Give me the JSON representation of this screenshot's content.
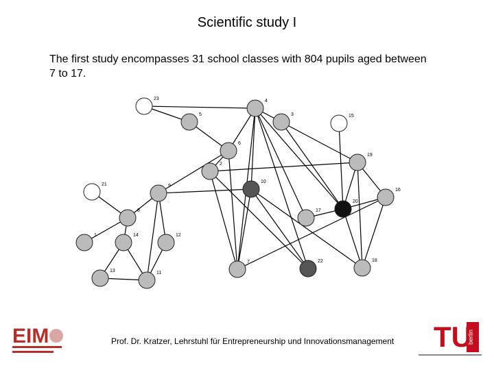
{
  "slide": {
    "title": "Scientific study I",
    "body": "The first study encompasses 31 school classes with 804 pupils aged between 7 to 17.",
    "footer": "Prof. Dr. Kratzer, Lehrstuhl für Entrepreneurship und Innovationsmanagement",
    "logo_left": "EIM",
    "logo_right_main": "TU",
    "logo_right_sub": "berlin"
  },
  "network": {
    "nodes": [
      {
        "label": "23"
      },
      {
        "label": "4"
      },
      {
        "label": "5"
      },
      {
        "label": "3"
      },
      {
        "label": "15"
      },
      {
        "label": "6"
      },
      {
        "label": "2"
      },
      {
        "label": "19"
      },
      {
        "label": "21"
      },
      {
        "label": "9"
      },
      {
        "label": "10"
      },
      {
        "label": "16"
      },
      {
        "label": "20"
      },
      {
        "label": "8"
      },
      {
        "label": "17"
      },
      {
        "label": "1"
      },
      {
        "label": "14"
      },
      {
        "label": "12"
      },
      {
        "label": "7"
      },
      {
        "label": "22"
      },
      {
        "label": "18"
      },
      {
        "label": "13"
      },
      {
        "label": "11"
      }
    ]
  }
}
